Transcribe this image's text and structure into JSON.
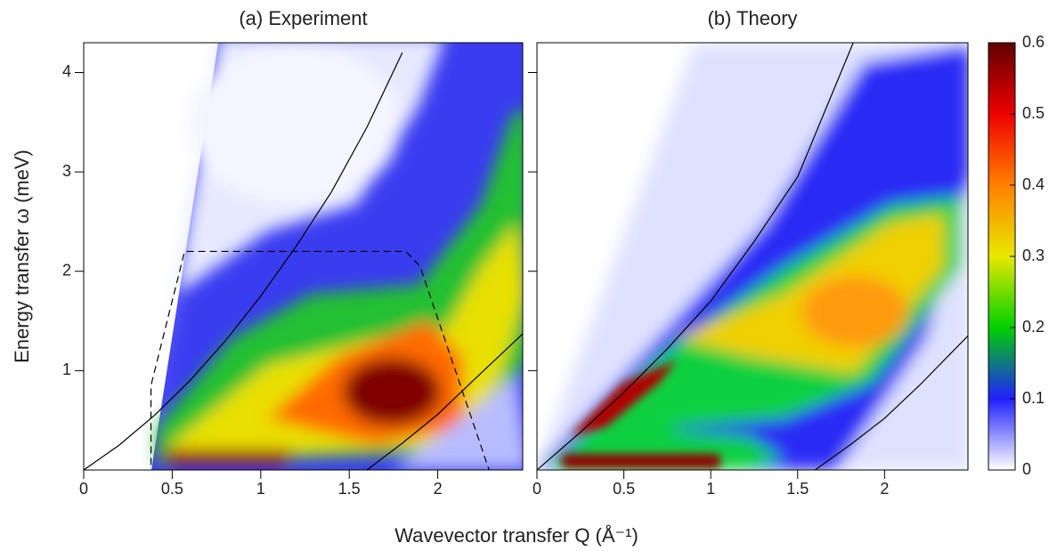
{
  "chart_data": [
    {
      "type": "heatmap",
      "title": "(a) Experiment",
      "xlabel": "Wavevector transfer Q (Å⁻¹)",
      "ylabel": "Energy transfer ω (meV)",
      "xlim": [
        0,
        2.48
      ],
      "ylim": [
        0,
        4.3
      ],
      "xticks": [
        0,
        0.5,
        1,
        1.5,
        2
      ],
      "yticks": [
        1,
        2,
        3,
        4
      ],
      "curves": [
        {
          "x": [
            0,
            0.2,
            0.4,
            0.6,
            0.8,
            1.0,
            1.2,
            1.4,
            1.6,
            1.8
          ],
          "y": [
            0,
            0.25,
            0.55,
            0.9,
            1.3,
            1.75,
            2.25,
            2.8,
            3.45,
            4.2
          ],
          "style": "solid",
          "color": "#000000"
        },
        {
          "x": [
            1.6,
            1.8,
            2.0,
            2.2,
            2.48
          ],
          "y": [
            0,
            0.27,
            0.56,
            0.9,
            1.37
          ],
          "style": "solid",
          "color": "#000000"
        },
        {
          "x": [
            0.38,
            0.38,
            0.57,
            1.82,
            1.9,
            2.29
          ],
          "y": [
            0.05,
            0.85,
            2.2,
            2.2,
            2.05,
            0
          ],
          "style": "dashed",
          "color": "#000000"
        }
      ]
    },
    {
      "type": "heatmap",
      "title": "(b) Theory",
      "xlim": [
        0,
        2.48
      ],
      "ylim": [
        0,
        4.3
      ],
      "xticks": [
        0,
        0.5,
        1,
        1.5,
        2
      ],
      "yticks": [
        1,
        2,
        3,
        4
      ],
      "ytick_labels": false,
      "curves": [
        {
          "x": [
            0,
            0.25,
            0.5,
            0.75,
            1.0,
            1.25,
            1.5,
            1.82
          ],
          "y": [
            0,
            0.38,
            0.78,
            1.22,
            1.7,
            2.3,
            2.95,
            4.3
          ],
          "style": "solid",
          "color": "#000000"
        },
        {
          "x": [
            1.6,
            1.8,
            2.0,
            2.2,
            2.48
          ],
          "y": [
            0,
            0.25,
            0.52,
            0.85,
            1.35
          ],
          "style": "solid",
          "color": "#000000"
        }
      ]
    },
    {
      "type": "colorbar",
      "lim": [
        0,
        0.6
      ],
      "ticks": [
        0,
        0.1,
        0.2,
        0.3,
        0.4,
        0.5,
        0.6
      ],
      "colors": [
        "#ffffff",
        "#2020ff",
        "#00d000",
        "#e8e800",
        "#ff8000",
        "#ee0000",
        "#600000"
      ]
    }
  ]
}
